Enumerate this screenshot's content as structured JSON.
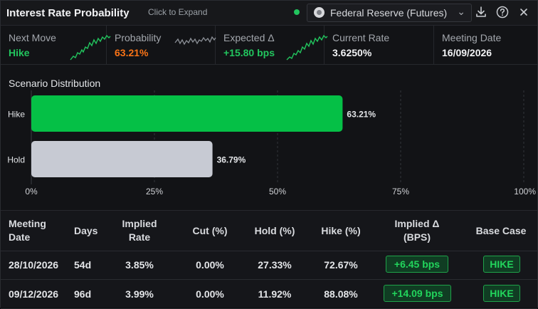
{
  "header": {
    "title": "Interest Rate Probability",
    "expand_label": "Click to Expand",
    "source": "Federal Reserve (Futures)"
  },
  "stats": [
    {
      "label": "Next Move",
      "value": "Hike",
      "color": "#22c55e"
    },
    {
      "label": "Probability",
      "value": "63.21%",
      "color": "#f97316"
    },
    {
      "label": "Expected Δ",
      "value": "+15.80 bps",
      "color": "#22c55e"
    },
    {
      "label": "Current Rate",
      "value": "3.6250%",
      "color": "#f2f3f5"
    },
    {
      "label": "Meeting Date",
      "value": "16/09/2026",
      "color": "#f2f3f5"
    }
  ],
  "chart_data": {
    "type": "bar",
    "orientation": "horizontal",
    "title": "Scenario Distribution",
    "categories": [
      "Hike",
      "Hold"
    ],
    "values": [
      63.21,
      36.79
    ],
    "value_labels": [
      "63.21%",
      "36.79%"
    ],
    "colors": [
      "#05c046",
      "#c7cad3"
    ],
    "xlim": [
      0,
      100
    ],
    "xticks": [
      "0%",
      "25%",
      "50%",
      "75%",
      "100%"
    ],
    "grid": true
  },
  "table": {
    "headers": [
      [
        "Meeting",
        "Date"
      ],
      [
        "Days"
      ],
      [
        "Implied",
        "Rate"
      ],
      [
        "Cut (%)"
      ],
      [
        "Hold (%)"
      ],
      [
        "Hike (%)"
      ],
      [
        "Implied Δ",
        "(BPS)"
      ],
      [
        "Base Case"
      ]
    ],
    "rows": [
      {
        "date": "28/10/2026",
        "days": "54d",
        "rate": "3.85%",
        "cut": "0.00%",
        "hold": "27.33%",
        "hike": "72.67%",
        "delta": "+6.45 bps",
        "base": "HIKE"
      },
      {
        "date": "09/12/2026",
        "days": "96d",
        "rate": "3.99%",
        "cut": "0.00%",
        "hold": "11.92%",
        "hike": "88.08%",
        "delta": "+14.09 bps",
        "base": "HIKE"
      }
    ]
  },
  "colors": {
    "accent_green": "#22c55e",
    "accent_orange": "#f97316"
  }
}
